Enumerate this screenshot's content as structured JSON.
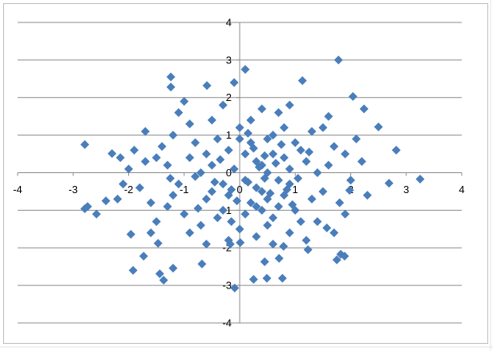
{
  "chart_data": {
    "type": "scatter",
    "color": "#4a7ebb",
    "x": [
      1.78,
      0.1,
      -1.24,
      -1.24,
      -0.59,
      -0.1,
      1.13,
      2.04,
      2.24,
      2.5,
      2.82,
      3.25,
      2.69,
      -2.79,
      -2.3,
      -2.15,
      -2.74,
      -2.79,
      -2.58,
      -2.41,
      -1.96,
      -1.92,
      -1.73,
      -1.47,
      -1.44,
      -1.37,
      -1.2,
      -0.68,
      -0.09,
      0.25,
      0.49,
      0.77,
      0.45,
      0.71,
      0.79,
      1.75,
      1.82,
      1.89,
      1.23,
      -0.17,
      0.01,
      1.57,
      1.98,
      0.1,
      0.3,
      -0.5,
      0.8,
      -1.1,
      0.5,
      1.2,
      -0.3,
      0.6,
      -0.8,
      1.5,
      -1.5,
      0.2,
      -0.2,
      0.9,
      -0.6,
      0.4,
      1.0,
      -1.3,
      0.0,
      1.7,
      -1.8,
      0.7,
      -0.9,
      1.3,
      0.3,
      -0.4,
      2.0,
      -2.0,
      0.6,
      0.9,
      -0.7,
      1.4,
      -1.2,
      0.1,
      0.4,
      -0.1,
      0.7,
      0.2,
      -0.3,
      1.1,
      -1.0,
      0.5,
      -0.5,
      1.8,
      -1.6,
      0.8,
      -1.4,
      2.2,
      -2.1,
      0.0,
      0.3,
      -0.2,
      1.6,
      -1.1,
      0.9,
      0.5,
      -0.8,
      1.3,
      -0.6,
      0.2,
      0.6,
      -0.4,
      1.0,
      -1.7,
      1.9,
      -0.9,
      0.4,
      1.2,
      -1.5,
      0.8,
      -0.2,
      0.3,
      0.7,
      -0.7,
      1.4,
      -1.3,
      0.1,
      0.5,
      -0.5,
      2.1,
      -1.9,
      1.7,
      -1.6,
      0.9,
      -0.3,
      1.5,
      -1.0,
      2.3,
      -2.2,
      0.35,
      0.15,
      -0.15,
      0.65,
      0.45,
      -0.45,
      0.85,
      1.05,
      0.25,
      -0.05,
      1.6,
      -1.2,
      0.6,
      -0.6,
      1.1,
      -0.9,
      0.0,
      1.9,
      -1.7,
      0.4,
      0.75,
      -0.35,
      0.55,
      1.25,
      -1.25,
      0.15,
      -0.75,
      0.95,
      0.45,
      -0.15
    ],
    "values": [
      3.0,
      2.75,
      2.55,
      2.28,
      2.32,
      2.4,
      2.45,
      2.03,
      1.7,
      1.22,
      0.6,
      -0.17,
      -0.28,
      0.75,
      0.51,
      0.4,
      -0.9,
      -0.96,
      -1.1,
      -0.75,
      -1.64,
      -2.6,
      -2.22,
      -1.88,
      -2.69,
      -2.86,
      -2.54,
      -2.43,
      -3.07,
      -2.84,
      -2.81,
      -2.81,
      -2.37,
      -2.28,
      -1.96,
      -2.32,
      -2.17,
      -2.22,
      -2.05,
      -1.9,
      -1.86,
      -1.47,
      -0.47,
      0.5,
      -0.4,
      0.2,
      -0.6,
      -0.3,
      0.9,
      0.3,
      -1.0,
      -1.2,
      0.8,
      -0.5,
      0.4,
      1.4,
      -0.6,
      0.1,
      -0.7,
      0.2,
      -1.0,
      -0.9,
      -1.5,
      0.7,
      -0.4,
      1.6,
      1.3,
      1.1,
      -0.9,
      0.9,
      -0.2,
      0.1,
      0.5,
      -1.6,
      -1.4,
      -1.3,
      1.0,
      -0.2,
      -0.5,
      0.1,
      -0.2,
      0.8,
      -0.3,
      0.6,
      -1.1,
      -1.4,
      1.4,
      -0.8,
      -0.8,
      1.2,
      0.7,
      0.3,
      -0.3,
      0.9,
      -1.7,
      -1.8,
      1.5,
      1.6,
      -0.3,
      0.0,
      -0.1,
      -0.7,
      0.5,
      -0.8,
      1.0,
      -1.2,
      0.8,
      1.1,
      -1.1,
      -1.6,
      1.7,
      -1.8,
      -1.3,
      0.4,
      0.6,
      0.3,
      -0.9,
      0.0,
      0.0,
      0.2,
      -1.1,
      -0.7,
      -0.5,
      0.9,
      0.6,
      -1.6,
      -1.6,
      1.8,
      1.8,
      1.2,
      1.9,
      -0.6,
      -0.7,
      0.15,
      -0.25,
      -0.45,
      0.25,
      -0.15,
      -0.25,
      -0.45,
      -0.15,
      0.65,
      -0.75,
      0.2,
      -0.6,
      -1.9,
      -1.9,
      -1.3,
      0.4,
      1.2,
      0.5,
      0.3,
      -1.0,
      0.75,
      0.35,
      -0.55,
      0.55,
      -0.15,
      1.05,
      -0.95,
      -0.85,
      0.45,
      -1.3
    ],
    "xlim": [
      -4,
      4
    ],
    "xticks": [
      -4,
      -3,
      -2,
      -1,
      0,
      1,
      2,
      3,
      4
    ],
    "ylim": [
      -4,
      4
    ],
    "yticks": [
      -4,
      -3,
      -2,
      -1,
      0,
      1,
      2,
      3,
      4
    ],
    "grid": true
  }
}
